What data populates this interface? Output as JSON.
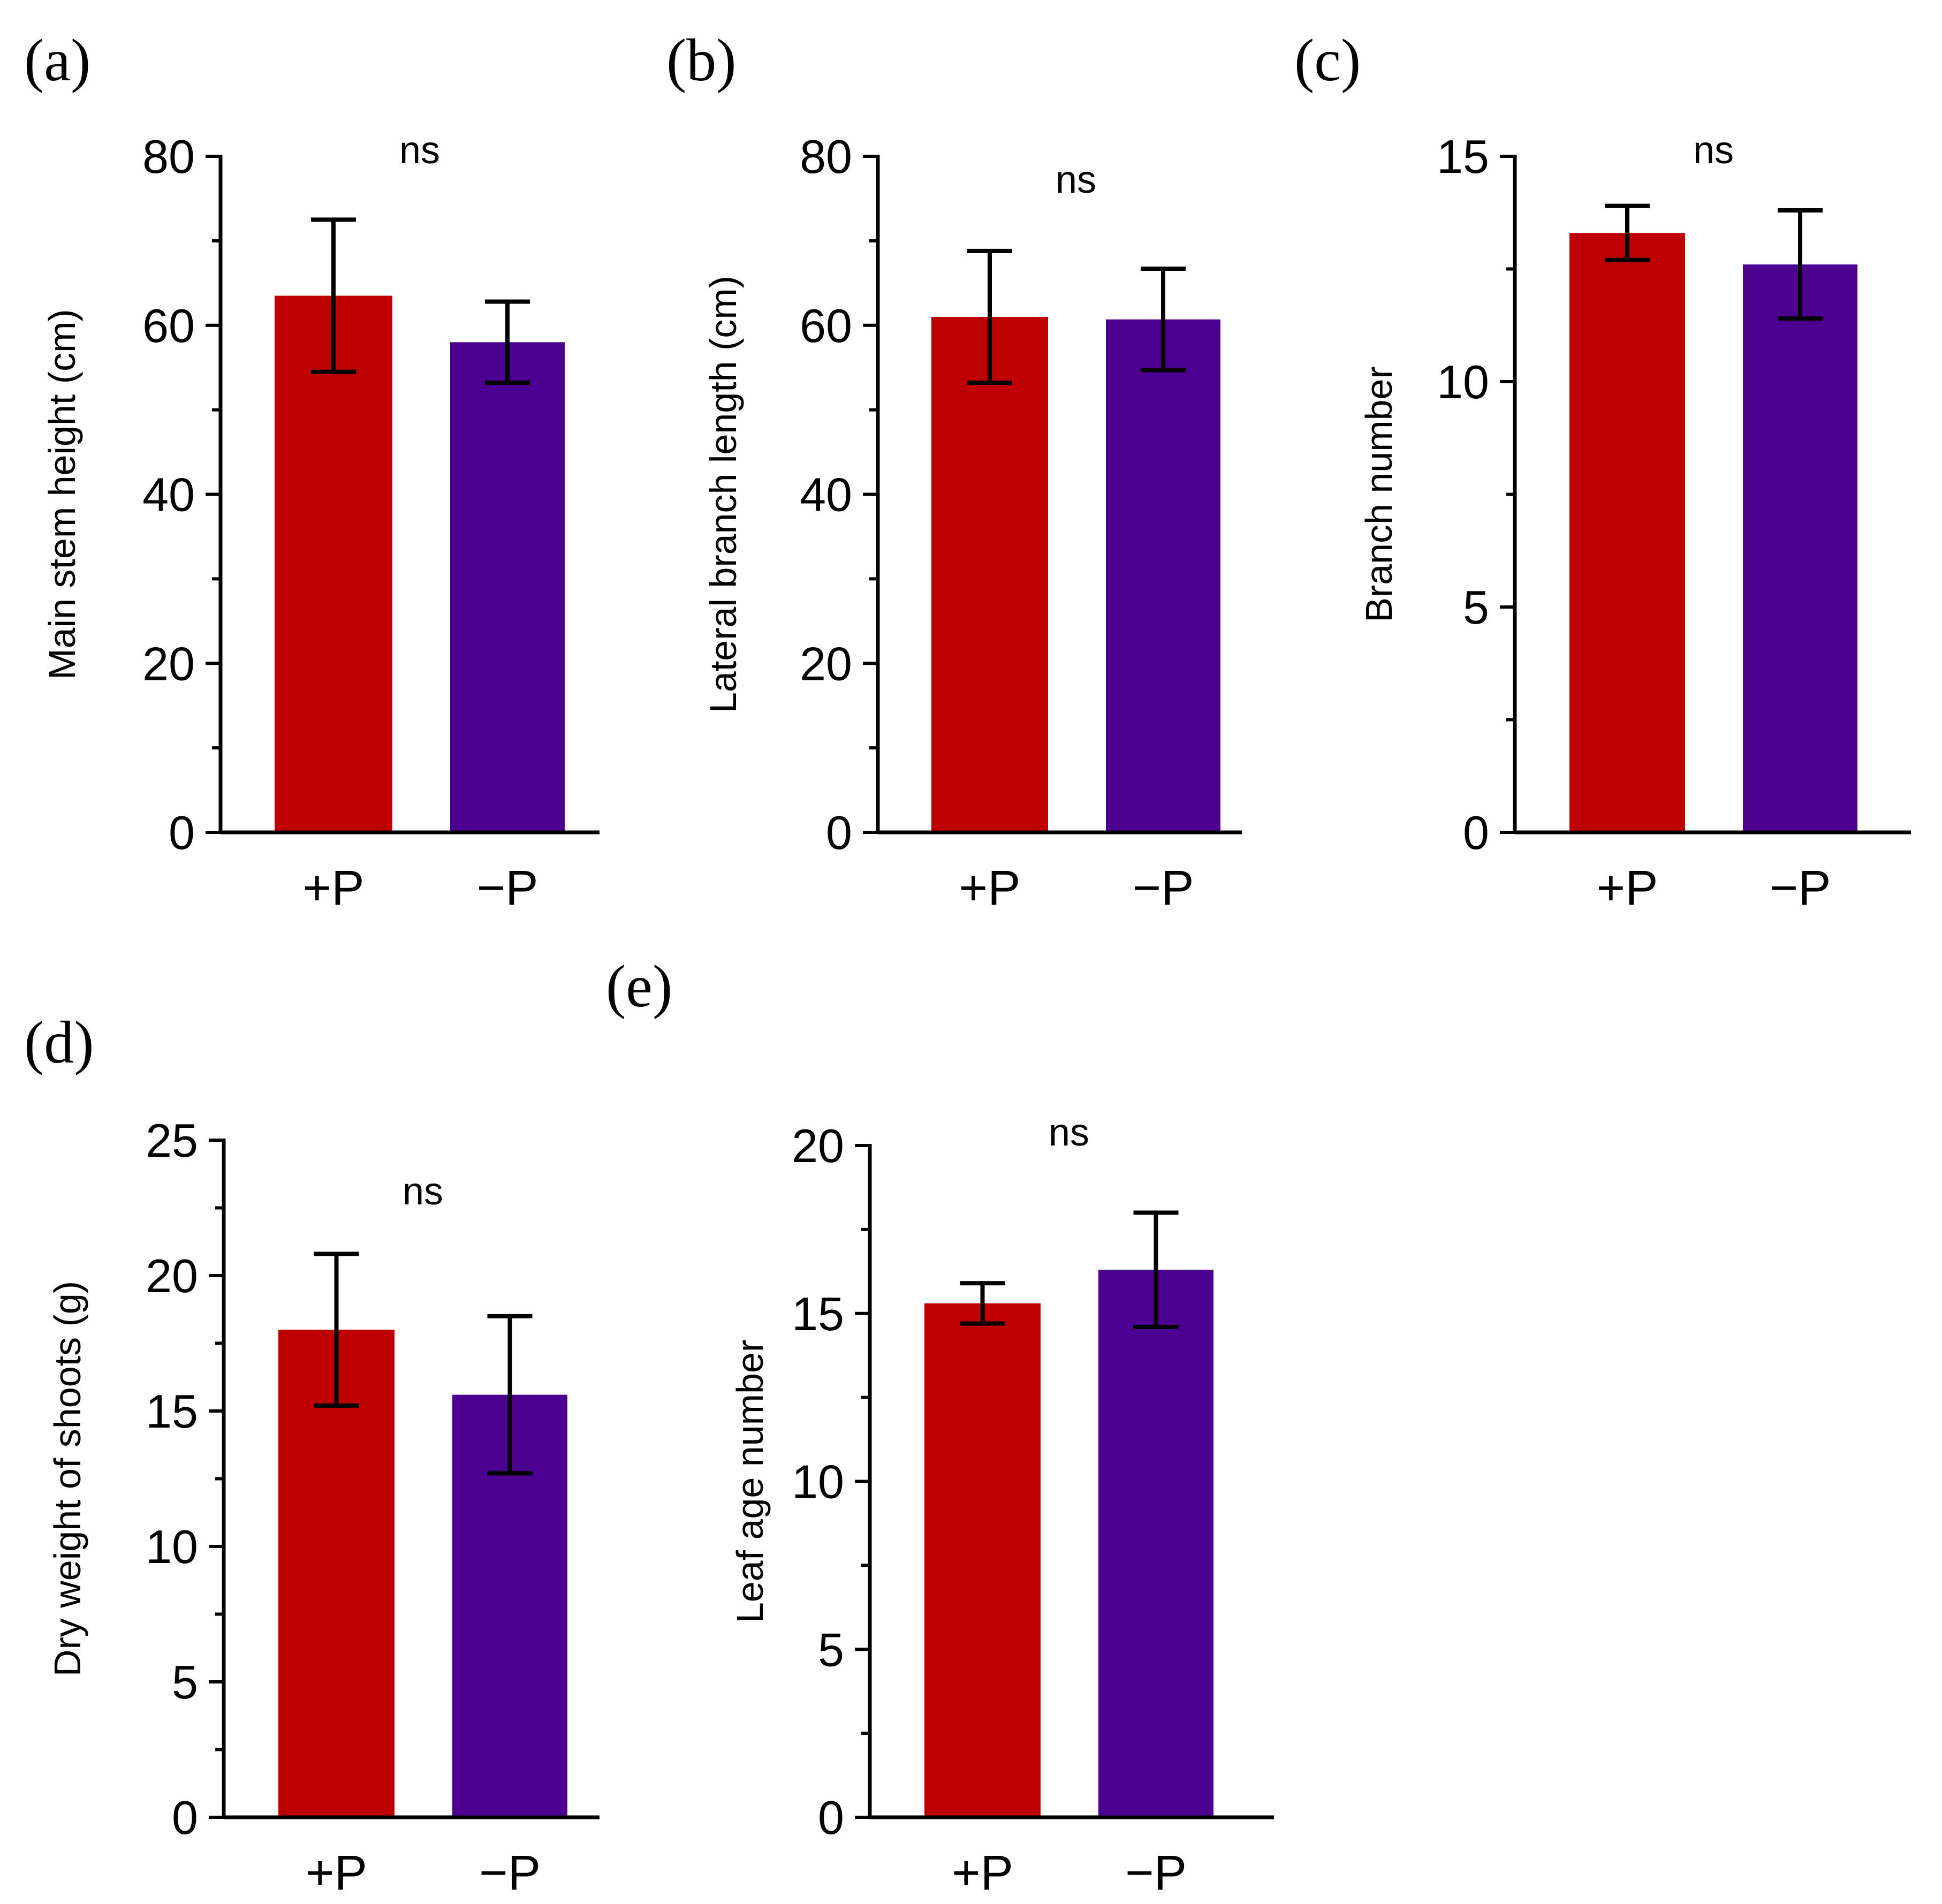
{
  "colors": {
    "plus_p": "#BF0000",
    "minus_p": "#4B0090"
  },
  "chart_data": [
    {
      "panel": "(a)",
      "type": "bar",
      "categories": [
        "+P",
        "−P"
      ],
      "values": [
        63.5,
        58.0
      ],
      "errors": [
        9.0,
        4.8
      ],
      "ylabel": "Main stem height (cm)",
      "ylim": [
        0,
        80
      ],
      "yticks": [
        0,
        20,
        40,
        60,
        80
      ],
      "yticks_text": [
        "0",
        "20",
        "40",
        "60",
        "80"
      ],
      "significance": "ns"
    },
    {
      "panel": "(b)",
      "type": "bar",
      "categories": [
        "+P",
        "−P"
      ],
      "values": [
        61.0,
        60.7
      ],
      "errors": [
        7.8,
        6.0
      ],
      "ylabel": "Lateral branch length (cm)",
      "ylim": [
        0,
        80
      ],
      "yticks": [
        0,
        20,
        40,
        60,
        80
      ],
      "yticks_text": [
        "0",
        "20",
        "40",
        "60",
        "80"
      ],
      "significance": "ns"
    },
    {
      "panel": "(c)",
      "type": "bar",
      "categories": [
        "+P",
        "−P"
      ],
      "values": [
        13.3,
        12.6
      ],
      "errors": [
        0.6,
        1.2
      ],
      "ylabel": "Branch number",
      "ylim": [
        0,
        15
      ],
      "yticks": [
        0,
        5,
        10,
        15
      ],
      "yticks_text": [
        "0",
        "5",
        "10",
        "15"
      ],
      "significance": "ns"
    },
    {
      "panel": "(d)",
      "type": "bar",
      "categories": [
        "+P",
        "−P"
      ],
      "values": [
        18.0,
        15.6
      ],
      "errors": [
        2.8,
        2.9
      ],
      "ylabel": "Dry weight of shoots (g)",
      "ylim": [
        0,
        25
      ],
      "yticks": [
        0,
        5,
        10,
        15,
        20,
        25
      ],
      "yticks_text": [
        "0",
        "5",
        "10",
        "15",
        "20",
        "25"
      ],
      "significance": "ns"
    },
    {
      "panel": "(e)",
      "type": "bar",
      "categories": [
        "+P",
        "−P"
      ],
      "values": [
        15.3,
        16.3
      ],
      "errors": [
        0.6,
        1.7
      ],
      "ylabel": "Leaf age number",
      "ylim": [
        0,
        20
      ],
      "yticks": [
        0,
        5,
        10,
        15,
        20
      ],
      "yticks_text": [
        "0",
        "5",
        "10",
        "15",
        "20"
      ],
      "significance": "ns"
    }
  ]
}
